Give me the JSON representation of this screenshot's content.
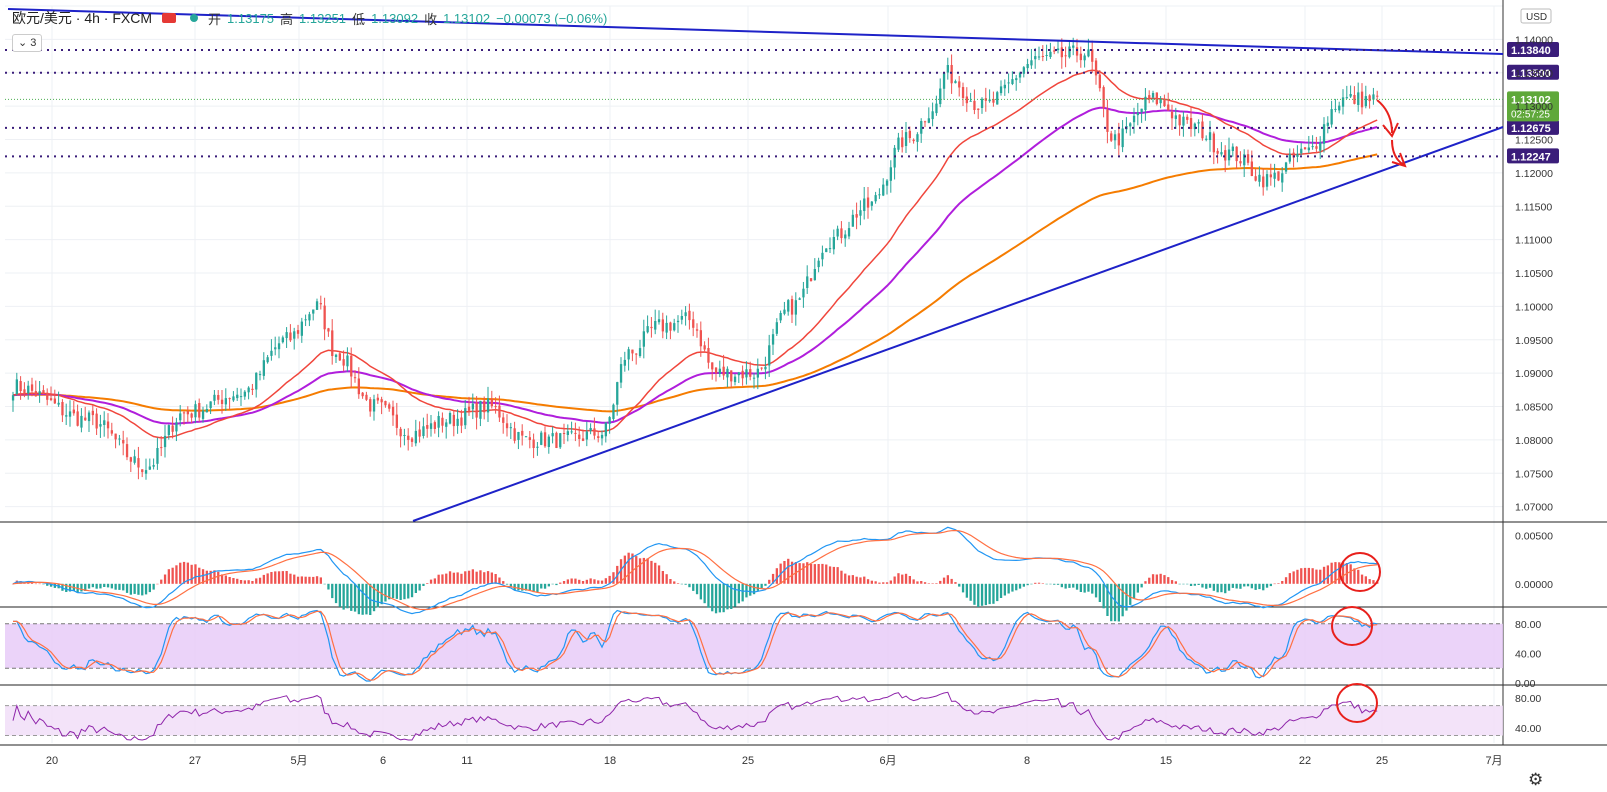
{
  "header": {
    "symbol": "欧元/美元 · 4h · FXCM",
    "o_label": "开",
    "o": "1.13175",
    "h_label": "高",
    "h": "1.13251",
    "l_label": "低",
    "l": "1.13092",
    "c_label": "收",
    "c": "1.13102",
    "change": "−0.00073 (−0.06%)",
    "indicator_count": "3"
  },
  "currency": "USD",
  "countdown": "02:57:25",
  "colors": {
    "up": "#26a69a",
    "down": "#ef5350",
    "trend": "#1e22c8",
    "ma_fast": "#f0463c",
    "ma_mid": "#b01edc",
    "ma_slow": "#f57c00",
    "level": "#3a1d7a",
    "annotation": "#e8201c"
  },
  "chart_data": {
    "type": "candlestick",
    "interval": "4h",
    "price_axis": {
      "min": 1.068,
      "max": 1.145,
      "ticks": [
        "1.14500",
        "1.14000",
        "1.13500",
        "1.13000",
        "1.12500",
        "1.12000",
        "1.11500",
        "1.11000",
        "1.10500",
        "1.10000",
        "1.09500",
        "1.09000",
        "1.08500",
        "1.08000",
        "1.07500",
        "1.07000"
      ]
    },
    "x_axis_labels": [
      "20",
      "27",
      "5月",
      "6",
      "11",
      "18",
      "25",
      "6月",
      "8",
      "15",
      "22",
      "25",
      "7月"
    ],
    "horizontal_levels": [
      {
        "price": 1.1384,
        "label": "1.13840"
      },
      {
        "price": 1.135,
        "label": "1.13500"
      },
      {
        "price": 1.12675,
        "label": "1.12675"
      },
      {
        "price": 1.12247,
        "label": "1.12247"
      }
    ],
    "last_price": {
      "price": 1.13102,
      "label": "1.13102"
    },
    "macd": {
      "ticks": [
        "0.00500",
        "0.00000"
      ],
      "range": [
        -0.0022,
        0.0062
      ]
    },
    "stoch": {
      "ticks": [
        "80.00",
        "40.00",
        "0.00"
      ],
      "range": [
        0,
        100
      ],
      "band": [
        20,
        80
      ]
    },
    "rsi": {
      "ticks": [
        "80.00",
        "40.00"
      ],
      "range": [
        20,
        95
      ],
      "band": [
        30,
        70
      ]
    },
    "anchors": [
      [
        0,
        1.088
      ],
      [
        20,
        1.083
      ],
      [
        35,
        1.076
      ],
      [
        45,
        1.084
      ],
      [
        60,
        1.087
      ],
      [
        72,
        1.095
      ],
      [
        80,
        1.1
      ],
      [
        85,
        1.093
      ],
      [
        95,
        1.085
      ],
      [
        105,
        1.081
      ],
      [
        115,
        1.083
      ],
      [
        125,
        1.085
      ],
      [
        135,
        1.08
      ],
      [
        145,
        1.08
      ],
      [
        155,
        1.081
      ],
      [
        162,
        1.093
      ],
      [
        170,
        1.097
      ],
      [
        178,
        1.098
      ],
      [
        185,
        1.09
      ],
      [
        195,
        1.09
      ],
      [
        205,
        1.1
      ],
      [
        215,
        1.11
      ],
      [
        225,
        1.115
      ],
      [
        235,
        1.125
      ],
      [
        243,
        1.13
      ],
      [
        245,
        1.135
      ],
      [
        255,
        1.13
      ],
      [
        270,
        1.137
      ],
      [
        282,
        1.138
      ],
      [
        290,
        1.125
      ],
      [
        300,
        1.131
      ],
      [
        310,
        1.127
      ],
      [
        320,
        1.123
      ],
      [
        330,
        1.119
      ],
      [
        340,
        1.123
      ],
      [
        350,
        1.131
      ]
    ]
  },
  "annotations": {
    "circles": [
      "macd",
      "stoch",
      "rsi"
    ],
    "arrows": 2
  }
}
